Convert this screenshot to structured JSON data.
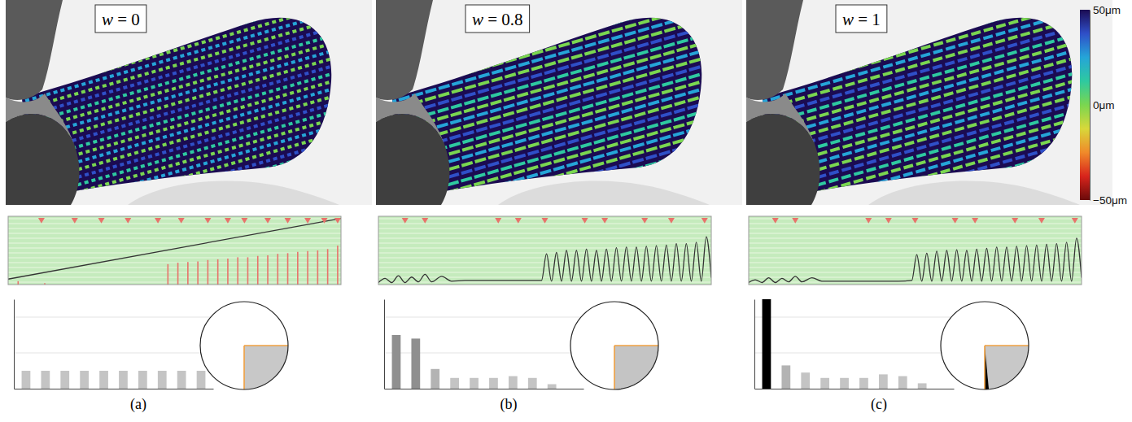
{
  "chart_data": [
    {
      "type": "panel",
      "title": "w = 0",
      "caption": "(a)",
      "charts": [
        {
          "type": "line",
          "xlim": [
            0,
            1
          ],
          "ylim": [
            0,
            1
          ],
          "tick_labels": false,
          "series": [
            {
              "type": "line",
              "color": "#333333",
              "x": [
                0,
                1
              ],
              "values": [
                0.08,
                0.97
              ]
            },
            {
              "type": "spike",
              "color": "#e8736b",
              "x": [
                0.03,
                0.11,
                0.48,
                0.51,
                0.54,
                0.57,
                0.6,
                0.63,
                0.66,
                0.69,
                0.72,
                0.75,
                0.78,
                0.81,
                0.84,
                0.87,
                0.9,
                0.93,
                0.96,
                0.99
              ],
              "values": [
                0.05,
                0.02,
                0.3,
                0.32,
                0.33,
                0.34,
                0.36,
                0.37,
                0.38,
                0.4,
                0.4,
                0.42,
                0.43,
                0.45,
                0.46,
                0.48,
                0.49,
                0.5,
                0.52,
                0.57
              ]
            },
            {
              "type": "scatter",
              "marker": "triangle-down",
              "color": "#e8736b",
              "x": [
                0.1,
                0.2,
                0.28,
                0.36,
                0.45,
                0.52,
                0.6,
                0.66,
                0.71,
                0.78,
                0.84,
                0.9,
                0.95,
                0.99
              ],
              "values": [
                0.95,
                0.95,
                0.95,
                0.95,
                0.95,
                0.95,
                0.95,
                0.95,
                0.95,
                0.95,
                0.95,
                0.95,
                0.95,
                0.95
              ]
            }
          ]
        },
        {
          "type": "bar",
          "categories": [
            null,
            null,
            null,
            null,
            null,
            null,
            null,
            null,
            null,
            null
          ],
          "values": [
            0.1,
            0.1,
            0.1,
            0.1,
            0.1,
            0.1,
            0.1,
            0.1,
            0.1,
            0.1
          ],
          "colors": [
            "#c4c4c4",
            "#c4c4c4",
            "#c4c4c4",
            "#c4c4c4",
            "#c4c4c4",
            "#c4c4c4",
            "#c4c4c4",
            "#c4c4c4",
            "#c4c4c4",
            "#c4c4c4"
          ],
          "ylim": [
            0,
            0.5
          ],
          "yticks": [
            0.2,
            0.4
          ],
          "grid": true,
          "tick_labels": false
        },
        {
          "type": "pie",
          "values": [
            25,
            75
          ],
          "colors": [
            "#c8c8c8",
            "#ffffff"
          ]
        }
      ]
    },
    {
      "type": "panel",
      "title": "w = 0.8",
      "caption": "(b)",
      "charts": [
        {
          "type": "line",
          "xlim": [
            0,
            1
          ],
          "ylim": [
            0,
            1
          ],
          "tick_labels": false,
          "series": [
            {
              "type": "line",
              "color": "#333333",
              "x": [
                0,
                0.02,
                0.04,
                0.06,
                0.08,
                0.1,
                0.12,
                0.14,
                0.16,
                0.19,
                0.22,
                0.26,
                0.3,
                0.35,
                0.4,
                0.45,
                0.49,
                0.505,
                0.52,
                0.535,
                0.55,
                0.565,
                0.58,
                0.595,
                0.61,
                0.625,
                0.64,
                0.655,
                0.67,
                0.685,
                0.7,
                0.715,
                0.73,
                0.745,
                0.76,
                0.775,
                0.79,
                0.805,
                0.82,
                0.835,
                0.85,
                0.865,
                0.88,
                0.895,
                0.91,
                0.925,
                0.94,
                0.955,
                0.97,
                0.985,
                1
              ],
              "values": [
                0.03,
                0.09,
                0.03,
                0.13,
                0.03,
                0.11,
                0.04,
                0.15,
                0.04,
                0.12,
                0.05,
                0.06,
                0.06,
                0.06,
                0.06,
                0.06,
                0.06,
                0.45,
                0.05,
                0.47,
                0.05,
                0.5,
                0.05,
                0.5,
                0.05,
                0.52,
                0.05,
                0.5,
                0.05,
                0.52,
                0.05,
                0.54,
                0.05,
                0.55,
                0.05,
                0.55,
                0.05,
                0.56,
                0.05,
                0.57,
                0.05,
                0.58,
                0.05,
                0.6,
                0.05,
                0.6,
                0.05,
                0.62,
                0.05,
                0.7,
                0.1
              ]
            },
            {
              "type": "scatter",
              "marker": "triangle-down",
              "color": "#e8736b",
              "x": [
                0.08,
                0.14,
                0.36,
                0.42,
                0.5,
                0.62,
                0.68,
                0.8,
                0.88,
                0.98
              ],
              "values": [
                0.95,
                0.95,
                0.95,
                0.95,
                0.95,
                0.95,
                0.95,
                0.95,
                0.95,
                0.95
              ]
            }
          ]
        },
        {
          "type": "bar",
          "categories": [
            null,
            null,
            null,
            null,
            null,
            null,
            null,
            null,
            null,
            null
          ],
          "values": [
            0.3,
            0.28,
            0.11,
            0.06,
            0.06,
            0.06,
            0.07,
            0.06,
            0.025,
            0
          ],
          "colors": [
            "#8f8f8f",
            "#8f8f8f",
            "#b3b3b3",
            "#c4c4c4",
            "#c4c4c4",
            "#c4c4c4",
            "#c4c4c4",
            "#c4c4c4",
            "#c4c4c4",
            "#c4c4c4"
          ],
          "ylim": [
            0,
            0.5
          ],
          "yticks": [
            0.2,
            0.4
          ],
          "grid": true,
          "tick_labels": false
        },
        {
          "type": "pie",
          "values": [
            25,
            75
          ],
          "colors": [
            "#c4c4c4",
            "#ffffff"
          ]
        }
      ]
    },
    {
      "type": "panel",
      "title": "w = 1",
      "caption": "(c)",
      "charts": [
        {
          "type": "line",
          "xlim": [
            0,
            1
          ],
          "ylim": [
            0,
            1
          ],
          "tick_labels": false,
          "series": [
            {
              "type": "line",
              "color": "#333333",
              "x": [
                0,
                0.02,
                0.04,
                0.06,
                0.08,
                0.1,
                0.12,
                0.14,
                0.16,
                0.19,
                0.22,
                0.26,
                0.3,
                0.35,
                0.4,
                0.45,
                0.49,
                0.505,
                0.52,
                0.535,
                0.55,
                0.565,
                0.58,
                0.595,
                0.61,
                0.625,
                0.64,
                0.655,
                0.67,
                0.685,
                0.7,
                0.715,
                0.73,
                0.745,
                0.76,
                0.775,
                0.79,
                0.805,
                0.82,
                0.835,
                0.85,
                0.865,
                0.88,
                0.895,
                0.91,
                0.925,
                0.94,
                0.955,
                0.97,
                0.985,
                1
              ],
              "values": [
                0.03,
                0.07,
                0.03,
                0.1,
                0.03,
                0.09,
                0.04,
                0.12,
                0.04,
                0.1,
                0.05,
                0.05,
                0.05,
                0.05,
                0.05,
                0.05,
                0.06,
                0.44,
                0.05,
                0.46,
                0.05,
                0.49,
                0.05,
                0.5,
                0.05,
                0.51,
                0.05,
                0.5,
                0.05,
                0.52,
                0.05,
                0.53,
                0.05,
                0.55,
                0.05,
                0.55,
                0.05,
                0.56,
                0.05,
                0.57,
                0.05,
                0.58,
                0.05,
                0.59,
                0.05,
                0.6,
                0.05,
                0.62,
                0.05,
                0.68,
                0.1
              ]
            },
            {
              "type": "scatter",
              "marker": "triangle-down",
              "color": "#e8736b",
              "x": [
                0.08,
                0.14,
                0.36,
                0.42,
                0.5,
                0.62,
                0.68,
                0.8,
                0.88,
                0.98
              ],
              "values": [
                0.95,
                0.95,
                0.95,
                0.95,
                0.95,
                0.95,
                0.95,
                0.95,
                0.95,
                0.95
              ]
            }
          ]
        },
        {
          "type": "bar",
          "categories": [
            null,
            null,
            null,
            null,
            null,
            null,
            null,
            null,
            null,
            null
          ],
          "values": [
            0.5,
            0.13,
            0.09,
            0.06,
            0.06,
            0.06,
            0.08,
            0.07,
            0.03,
            0
          ],
          "colors": [
            "#000000",
            "#b3b3b3",
            "#c4c4c4",
            "#c4c4c4",
            "#c4c4c4",
            "#c4c4c4",
            "#c4c4c4",
            "#c4c4c4",
            "#c4c4c4",
            "#c4c4c4"
          ],
          "ylim": [
            0,
            0.5
          ],
          "yticks": [
            0.2,
            0.4
          ],
          "grid": true,
          "tick_labels": false
        },
        {
          "type": "pie",
          "values": [
            23.5,
            1.5,
            75
          ],
          "colors": [
            "#c8c8c8",
            "#000000",
            "#ffffff"
          ]
        }
      ]
    },
    {
      "type": "colorbar",
      "ylim": [
        -50,
        50
      ],
      "yticks": [
        {
          "value": -50,
          "label": "−50μm"
        },
        {
          "value": 0,
          "label": "0μm"
        },
        {
          "value": 50,
          "label": "50μm"
        }
      ],
      "colors": [
        "#6a0a0a",
        "#d8241c",
        "#f08a2a",
        "#d8d83a",
        "#7ad650",
        "#2ec9a0",
        "#25a5d8",
        "#2f4fc8",
        "#1b0b52"
      ]
    }
  ]
}
